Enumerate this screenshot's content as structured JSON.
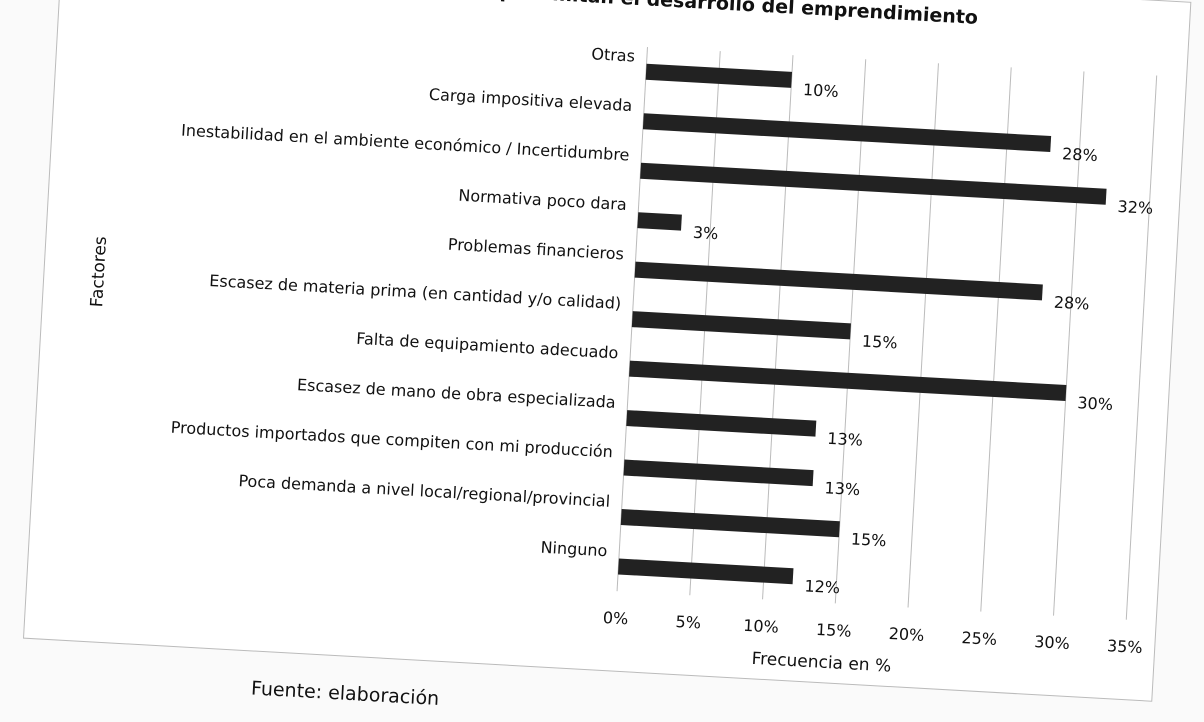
{
  "chart_data": {
    "type": "hbar",
    "title": "es que limitan el desarrollo del emprendimiento",
    "x_label": "Frecuencia en %",
    "y_label": "Factores",
    "source": "Fuente: elaboración",
    "categories": [
      "Otras",
      "Carga impositiva elevada",
      "Inestabilidad en el ambiente económico / Incertidumbre",
      "Normativa poco dara",
      "Problemas financieros",
      "Escasez de materia prima (en cantidad y/o calidad)",
      "Falta de equipamiento adecuado",
      "Escasez de mano de obra especializada",
      "Productos importados que compiten con mi producción",
      "Poca demanda a nivel local/regional/provincial",
      "Ninguno"
    ],
    "values": [
      10,
      28,
      32,
      3,
      28,
      15,
      30,
      13,
      13,
      15,
      12
    ],
    "value_labels": [
      "10%",
      "28%",
      "32%",
      "3%",
      "28%",
      "15%",
      "30%",
      "13%",
      "13%",
      "15%",
      "12%"
    ],
    "color": "#222222",
    "xlim": [
      0,
      35
    ],
    "xticks": [
      {
        "value": 0,
        "label": "0%"
      },
      {
        "value": 5,
        "label": "5%"
      },
      {
        "value": 10,
        "label": "10%"
      },
      {
        "value": 15,
        "label": "15%"
      },
      {
        "value": 20,
        "label": "20%"
      },
      {
        "value": 25,
        "label": "25%"
      },
      {
        "value": 30,
        "label": "30%"
      },
      {
        "value": 35,
        "label": "35%"
      }
    ],
    "grid": true
  }
}
